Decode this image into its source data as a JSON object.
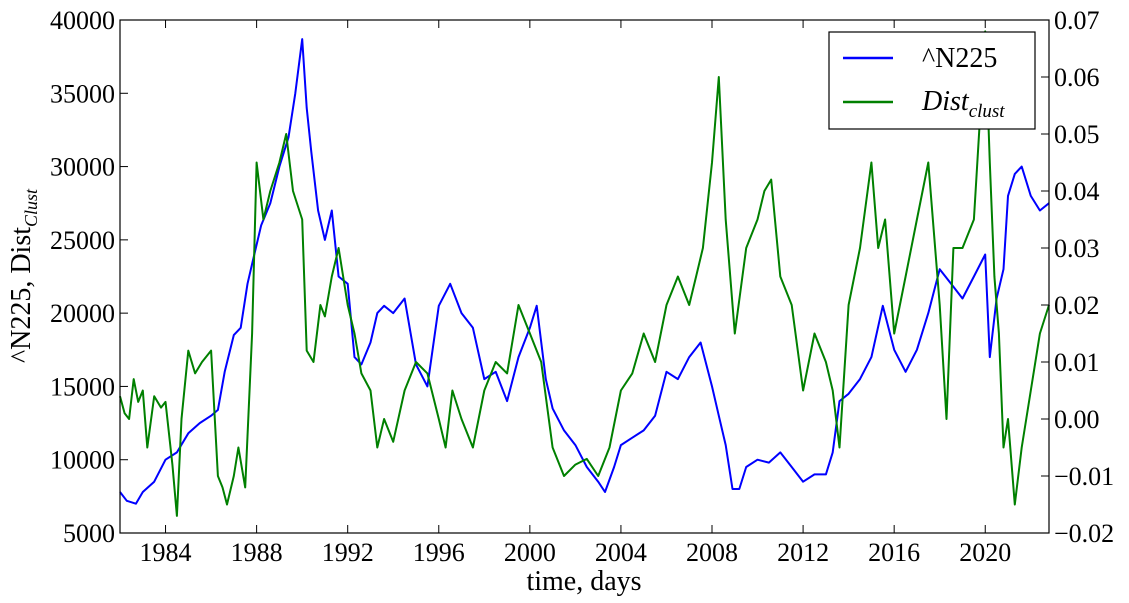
{
  "chart_data": {
    "type": "line",
    "xlabel": "time, days",
    "ylabel_left": "^N225, Dist",
    "ylabel_left_sub": "Clust",
    "legend_position": "top-right",
    "x_ticks": [
      "1984",
      "1988",
      "1992",
      "1996",
      "2000",
      "2004",
      "2008",
      "2012",
      "2016",
      "2020"
    ],
    "x_tick_values": [
      1984,
      1988,
      1992,
      1996,
      2000,
      2004,
      2008,
      2012,
      2016,
      2020
    ],
    "xlim": [
      1982.0,
      2022.8
    ],
    "y_left": {
      "lim": [
        5000,
        40000
      ],
      "ticks": [
        "5000",
        "10000",
        "15000",
        "20000",
        "25000",
        "30000",
        "35000",
        "40000"
      ],
      "tick_values": [
        5000,
        10000,
        15000,
        20000,
        25000,
        30000,
        35000,
        40000
      ]
    },
    "y_right": {
      "lim": [
        -0.02,
        0.07
      ],
      "ticks": [
        "−0.02",
        "−0.01",
        "0.00",
        "0.01",
        "0.02",
        "0.03",
        "0.04",
        "0.05",
        "0.06",
        "0.07"
      ],
      "tick_values": [
        -0.02,
        -0.01,
        0.0,
        0.01,
        0.02,
        0.03,
        0.04,
        0.05,
        0.06,
        0.07
      ]
    },
    "series": [
      {
        "name": "^N225",
        "legend_label": "^N225",
        "axis": "left",
        "color": "#0000ff",
        "x": [
          1982.0,
          1982.3,
          1982.7,
          1983.0,
          1983.5,
          1984.0,
          1984.5,
          1985.0,
          1985.5,
          1986.0,
          1986.3,
          1986.6,
          1987.0,
          1987.3,
          1987.6,
          1987.9,
          1988.2,
          1988.6,
          1989.0,
          1989.4,
          1989.7,
          1990.0,
          1990.2,
          1990.4,
          1990.7,
          1991.0,
          1991.3,
          1991.6,
          1992.0,
          1992.3,
          1992.6,
          1993.0,
          1993.3,
          1993.6,
          1994.0,
          1994.5,
          1995.0,
          1995.5,
          1996.0,
          1996.5,
          1997.0,
          1997.5,
          1998.0,
          1998.5,
          1999.0,
          1999.5,
          2000.0,
          2000.3,
          2000.7,
          2001.0,
          2001.5,
          2002.0,
          2002.5,
          2003.0,
          2003.3,
          2003.7,
          2004.0,
          2004.5,
          2005.0,
          2005.5,
          2006.0,
          2006.5,
          2007.0,
          2007.5,
          2008.0,
          2008.3,
          2008.6,
          2008.9,
          2009.2,
          2009.5,
          2010.0,
          2010.5,
          2011.0,
          2011.5,
          2012.0,
          2012.5,
          2013.0,
          2013.3,
          2013.6,
          2014.0,
          2014.5,
          2015.0,
          2015.5,
          2016.0,
          2016.5,
          2017.0,
          2017.5,
          2018.0,
          2018.5,
          2019.0,
          2019.5,
          2020.0,
          2020.2,
          2020.5,
          2020.8,
          2021.0,
          2021.3,
          2021.6,
          2022.0,
          2022.4,
          2022.8
        ],
        "values": [
          7800,
          7200,
          7000,
          7800,
          8500,
          10000,
          10500,
          11800,
          12500,
          13000,
          13400,
          16000,
          18500,
          19000,
          22000,
          24000,
          26000,
          27500,
          30000,
          32000,
          35000,
          38700,
          34000,
          31000,
          27000,
          25000,
          27000,
          22500,
          22000,
          17000,
          16500,
          18000,
          20000,
          20500,
          20000,
          21000,
          16500,
          15000,
          20500,
          22000,
          20000,
          19000,
          15500,
          16000,
          14000,
          17000,
          19000,
          20500,
          15500,
          13500,
          12000,
          11000,
          9500,
          8500,
          7800,
          9500,
          11000,
          11500,
          12000,
          13000,
          16000,
          15500,
          17000,
          18000,
          15000,
          13000,
          11000,
          8000,
          8000,
          9500,
          10000,
          9800,
          10500,
          9500,
          8500,
          9000,
          9000,
          10500,
          14000,
          14500,
          15500,
          17000,
          20500,
          17500,
          16000,
          17500,
          20000,
          23000,
          22000,
          21000,
          22500,
          24000,
          17000,
          21000,
          23000,
          28000,
          29500,
          30000,
          28000,
          27000,
          27500
        ]
      },
      {
        "name": "Dist_clust",
        "legend_label": "Dist",
        "legend_sub": "clust",
        "axis": "right",
        "color": "#008000",
        "x": [
          1982.0,
          1982.2,
          1982.4,
          1982.6,
          1982.8,
          1983.0,
          1983.2,
          1983.5,
          1983.8,
          1984.0,
          1984.3,
          1984.5,
          1984.7,
          1985.0,
          1985.3,
          1985.6,
          1986.0,
          1986.3,
          1986.5,
          1986.7,
          1987.0,
          1987.2,
          1987.5,
          1987.8,
          1988.0,
          1988.3,
          1988.6,
          1989.0,
          1989.3,
          1989.6,
          1990.0,
          1990.2,
          1990.5,
          1990.8,
          1991.0,
          1991.3,
          1991.6,
          1992.0,
          1992.3,
          1992.6,
          1993.0,
          1993.3,
          1993.6,
          1994.0,
          1994.5,
          1995.0,
          1995.5,
          1996.0,
          1996.3,
          1996.6,
          1997.0,
          1997.5,
          1998.0,
          1998.5,
          1999.0,
          1999.5,
          2000.0,
          2000.5,
          2001.0,
          2001.5,
          2002.0,
          2002.5,
          2003.0,
          2003.5,
          2004.0,
          2004.5,
          2005.0,
          2005.5,
          2006.0,
          2006.5,
          2007.0,
          2007.3,
          2007.6,
          2008.0,
          2008.3,
          2008.6,
          2009.0,
          2009.5,
          2010.0,
          2010.3,
          2010.6,
          2011.0,
          2011.5,
          2012.0,
          2012.5,
          2013.0,
          2013.3,
          2013.6,
          2014.0,
          2014.5,
          2015.0,
          2015.3,
          2015.6,
          2016.0,
          2016.5,
          2017.0,
          2017.5,
          2018.0,
          2018.3,
          2018.6,
          2019.0,
          2019.5,
          2020.0,
          2020.2,
          2020.4,
          2020.6,
          2020.8,
          2021.0,
          2021.3,
          2021.6,
          2022.0,
          2022.4,
          2022.8
        ],
        "values": [
          0.004,
          0.001,
          0.0,
          0.007,
          0.003,
          0.005,
          -0.005,
          0.004,
          0.002,
          0.003,
          -0.008,
          -0.017,
          0.0,
          0.012,
          0.008,
          0.01,
          0.012,
          -0.01,
          -0.012,
          -0.015,
          -0.01,
          -0.005,
          -0.012,
          0.015,
          0.045,
          0.035,
          0.04,
          0.045,
          0.05,
          0.04,
          0.035,
          0.012,
          0.01,
          0.02,
          0.018,
          0.025,
          0.03,
          0.02,
          0.015,
          0.008,
          0.005,
          -0.005,
          0.0,
          -0.004,
          0.005,
          0.01,
          0.008,
          0.0,
          -0.005,
          0.005,
          0.0,
          -0.005,
          0.005,
          0.01,
          0.008,
          0.02,
          0.015,
          0.01,
          -0.005,
          -0.01,
          -0.008,
          -0.007,
          -0.01,
          -0.005,
          0.005,
          0.008,
          0.015,
          0.01,
          0.02,
          0.025,
          0.02,
          0.025,
          0.03,
          0.045,
          0.06,
          0.035,
          0.015,
          0.03,
          0.035,
          0.04,
          0.042,
          0.025,
          0.02,
          0.005,
          0.015,
          0.01,
          0.005,
          -0.005,
          0.02,
          0.03,
          0.045,
          0.03,
          0.035,
          0.015,
          0.025,
          0.035,
          0.045,
          0.02,
          0.0,
          0.03,
          0.03,
          0.035,
          0.068,
          0.045,
          0.025,
          0.015,
          -0.005,
          0.0,
          -0.015,
          -0.005,
          0.005,
          0.015,
          0.02
        ]
      }
    ]
  }
}
